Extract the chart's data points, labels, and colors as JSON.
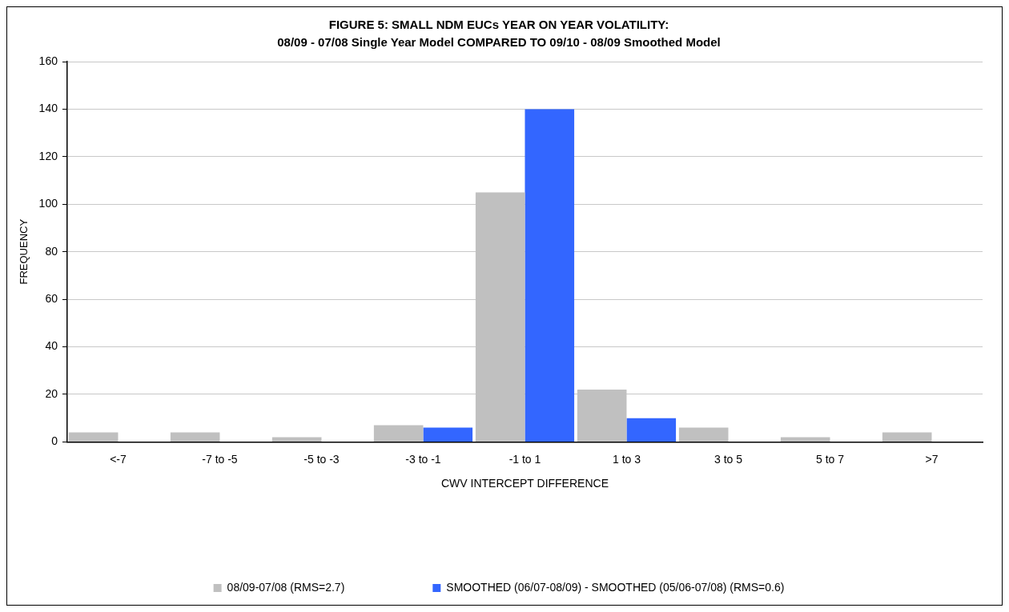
{
  "chart_data": {
    "type": "bar",
    "title": "FIGURE 5: SMALL NDM EUCs YEAR ON YEAR VOLATILITY:",
    "subtitle": "08/09 - 07/08 Single Year Model COMPARED TO 09/10 - 08/09 Smoothed Model",
    "xlabel": "CWV INTERCEPT DIFFERENCE",
    "ylabel": "FREQUENCY",
    "categories": [
      "<-7",
      "-7 to -5",
      "-5 to -3",
      "-3 to -1",
      "-1 to 1",
      "1 to 3",
      "3 to 5",
      "5 to 7",
      ">7"
    ],
    "series": [
      {
        "name": "08/09-07/08 (RMS=2.7)",
        "color": "#c0c0c0",
        "values": [
          4,
          4,
          2,
          7,
          105,
          22,
          6,
          2,
          4
        ]
      },
      {
        "name": "SMOOTHED (06/07-08/09) - SMOOTHED (05/06-07/08) (RMS=0.6)",
        "color": "#3366ff",
        "values": [
          0,
          0,
          0,
          6,
          140,
          10,
          0,
          0,
          0
        ]
      }
    ],
    "ylim": [
      0,
      160
    ],
    "yticks": [
      0,
      20,
      40,
      60,
      80,
      100,
      120,
      140,
      160
    ],
    "grid": "y",
    "legend": "bottom"
  }
}
